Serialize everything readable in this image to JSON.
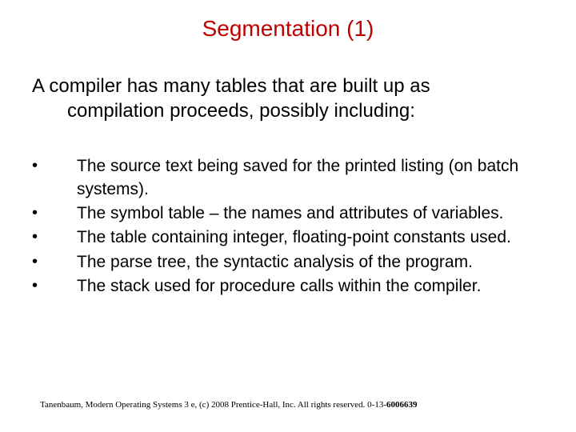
{
  "title": {
    "text": "Segmentation (1)",
    "color": "#c00000"
  },
  "intro": {
    "line1": "A compiler has many tables that are built up as",
    "line2": "compilation proceeds, possibly including:"
  },
  "bullets": [
    {
      "text": "The source text being saved for the printed listing (on batch systems)."
    },
    {
      "text": "The symbol table – the names and attributes of variables."
    },
    {
      "text": "The table containing integer, floating-point constants used."
    },
    {
      "text": "The parse tree, the syntactic analysis of the program."
    },
    {
      "text": "The stack used for procedure calls within the compiler."
    }
  ],
  "bullet_marker": "•",
  "footer": {
    "prefix": "Tanenbaum, Modern Operating Systems 3 e, (c) 2008 Prentice-Hall, Inc. All rights reserved. 0-13-",
    "bold": "6006639"
  }
}
